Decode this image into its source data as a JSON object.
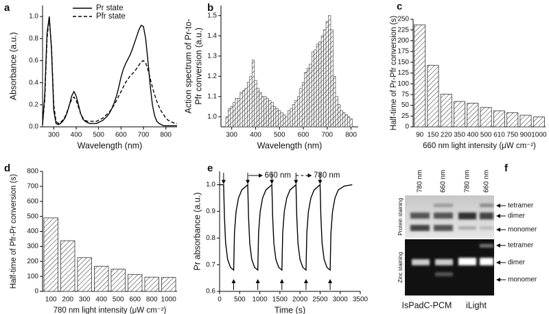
{
  "chart_data": [
    {
      "panel": "a",
      "type": "line",
      "xlabel": "Wavelength (nm)",
      "ylabel": "Absorbance (a.u.)",
      "xlim": [
        250,
        850
      ],
      "xticks": [
        300,
        400,
        500,
        600,
        700,
        800
      ],
      "ylim": [
        0,
        1.1
      ],
      "yticks": [
        {
          "value": 0,
          "label": "0.0"
        },
        0.2,
        0.4,
        0.6,
        0.8,
        {
          "value": 1,
          "label": "1.0"
        }
      ],
      "legend": "upper center",
      "x": [
        250,
        260,
        270,
        280,
        290,
        300,
        310,
        320,
        330,
        340,
        350,
        360,
        370,
        380,
        390,
        400,
        410,
        420,
        430,
        440,
        450,
        460,
        470,
        480,
        490,
        500,
        510,
        520,
        530,
        540,
        550,
        560,
        570,
        580,
        590,
        600,
        610,
        620,
        630,
        640,
        650,
        660,
        670,
        680,
        690,
        700,
        710,
        720,
        730,
        740,
        750,
        760,
        770,
        780,
        790,
        800,
        810,
        820,
        830,
        840,
        850
      ],
      "series": [
        {
          "name": "Pr state",
          "color": "#000000",
          "linestyle": "solid",
          "values": [
            0.02,
            0.3,
            0.85,
            1.0,
            0.7,
            0.15,
            0.03,
            0.02,
            0.03,
            0.05,
            0.08,
            0.13,
            0.2,
            0.28,
            0.32,
            0.28,
            0.2,
            0.12,
            0.07,
            0.05,
            0.04,
            0.03,
            0.03,
            0.03,
            0.03,
            0.04,
            0.05,
            0.06,
            0.08,
            0.1,
            0.13,
            0.17,
            0.22,
            0.28,
            0.36,
            0.45,
            0.52,
            0.57,
            0.61,
            0.65,
            0.7,
            0.76,
            0.82,
            0.88,
            0.92,
            0.91,
            0.8,
            0.6,
            0.38,
            0.2,
            0.1,
            0.05,
            0.03,
            0.02,
            0.01,
            0.01,
            0.01,
            0.01,
            0.01,
            0.01,
            0.01
          ]
        },
        {
          "name": "Pfr state",
          "color": "#000000",
          "linestyle": "dashed",
          "values": [
            0.02,
            0.25,
            0.8,
            1.0,
            0.72,
            0.2,
            0.05,
            0.03,
            0.04,
            0.06,
            0.09,
            0.14,
            0.2,
            0.25,
            0.27,
            0.24,
            0.18,
            0.12,
            0.08,
            0.06,
            0.05,
            0.05,
            0.05,
            0.05,
            0.05,
            0.06,
            0.07,
            0.08,
            0.1,
            0.12,
            0.14,
            0.17,
            0.2,
            0.24,
            0.28,
            0.32,
            0.36,
            0.4,
            0.43,
            0.46,
            0.48,
            0.5,
            0.53,
            0.56,
            0.59,
            0.6,
            0.58,
            0.52,
            0.44,
            0.36,
            0.29,
            0.23,
            0.18,
            0.14,
            0.11,
            0.08,
            0.06,
            0.05,
            0.04,
            0.03,
            0.03
          ]
        }
      ]
    },
    {
      "panel": "b",
      "type": "histogram",
      "xlabel": "Wavelength (nm)",
      "ylabel": [
        "Action spectrum of Pr-to-",
        "Pfr conversion (a.u.)"
      ],
      "xlim": [
        255,
        830
      ],
      "xticks": [
        300,
        400,
        500,
        600,
        700,
        800
      ],
      "ylim": [
        0.95,
        1.55
      ],
      "yticks": [
        {
          "value": 1,
          "label": "1.0"
        },
        1.1,
        1.2,
        1.3,
        1.4,
        1.5
      ],
      "color": "#ffffff",
      "edgecolor": "#333333",
      "hatch": true,
      "bins": [
        275,
        285,
        295,
        305,
        315,
        325,
        335,
        345,
        355,
        365,
        375,
        385,
        395,
        405,
        415,
        425,
        435,
        445,
        455,
        465,
        475,
        485,
        495,
        505,
        515,
        525,
        535,
        545,
        555,
        565,
        575,
        585,
        595,
        605,
        615,
        625,
        635,
        645,
        655,
        665,
        675,
        685,
        695,
        705,
        715,
        725,
        735,
        745,
        755,
        765,
        775,
        785,
        795,
        805
      ],
      "values": [
        1.0,
        1.04,
        1.05,
        1.07,
        1.09,
        1.09,
        1.12,
        1.13,
        1.14,
        1.17,
        1.2,
        1.28,
        1.18,
        1.14,
        1.12,
        1.1,
        1.1,
        1.09,
        1.08,
        1.07,
        1.05,
        1.04,
        1.03,
        1.02,
        1.01,
        1.0,
        1.03,
        1.04,
        1.06,
        1.08,
        1.1,
        1.14,
        1.17,
        1.22,
        1.24,
        1.26,
        1.32,
        1.33,
        1.36,
        1.37,
        1.4,
        1.43,
        1.47,
        1.5,
        1.43,
        1.2,
        1.1,
        1.06,
        1.03,
        1.02,
        1.01,
        1.0,
        0.99
      ]
    },
    {
      "panel": "c",
      "type": "bar",
      "xlabel": "660 nm light intensity (μW cm⁻²)",
      "ylabel": "Half-time of Pr-Pfr conversion (s)",
      "categories": [
        "90",
        "150",
        "220",
        "350",
        "400",
        "500",
        "610",
        "750",
        "900",
        "1000"
      ],
      "values": [
        237,
        143,
        76,
        59,
        55,
        45,
        37,
        33,
        27,
        23
      ],
      "ylim": [
        0,
        250
      ],
      "yticks": [
        0,
        25,
        50,
        75,
        100,
        125,
        150,
        175,
        200,
        225,
        250
      ],
      "color": "#ffffff",
      "edgecolor": "#333333",
      "hatch": true
    },
    {
      "panel": "d",
      "type": "bar",
      "xlabel": "780 nm light intensity (μW cm⁻²)",
      "ylabel": "Half-time of Pfr-Pr conversion (s)",
      "categories": [
        "100",
        "200",
        "300",
        "400",
        "500",
        "600",
        "800",
        "1000"
      ],
      "values": [
        490,
        338,
        225,
        168,
        148,
        113,
        95,
        93
      ],
      "ylim": [
        0,
        800
      ],
      "yticks": [
        0,
        100,
        200,
        300,
        400,
        500,
        600,
        700,
        800
      ],
      "color": "#ffffff",
      "edgecolor": "#333333",
      "hatch": true
    },
    {
      "panel": "e",
      "type": "line",
      "xlabel": "Time (s)",
      "ylabel": "Pr absorbance (a.u.)",
      "xlim": [
        0,
        3500
      ],
      "xticks": [
        0,
        500,
        1000,
        1500,
        2000,
        2500,
        3000,
        3500
      ],
      "ylim": [
        0.6,
        1.05
      ],
      "yticks": [
        0.6,
        0.7,
        0.8,
        0.9,
        {
          "value": 1,
          "label": "1.0"
        }
      ],
      "annotations": [
        "660 nm",
        "780 nm"
      ],
      "down_arrows": [
        100,
        700,
        1300,
        1900,
        2500
      ],
      "up_arrows": [
        350,
        950,
        1550,
        2150,
        2750
      ],
      "x": [
        0,
        100,
        120,
        150,
        200,
        270,
        350,
        370,
        410,
        470,
        550,
        700,
        720,
        750,
        800,
        870,
        950,
        970,
        1010,
        1070,
        1150,
        1300,
        1320,
        1350,
        1400,
        1470,
        1550,
        1570,
        1610,
        1670,
        1750,
        1900,
        1920,
        1950,
        2000,
        2070,
        2150,
        2170,
        2210,
        2270,
        2350,
        2500,
        2520,
        2550,
        2600,
        2670,
        2750,
        2770,
        2810,
        2870,
        2950,
        3100,
        3300
      ],
      "series": [
        {
          "color": "#000000",
          "linestyle": "solid",
          "values": [
            1.0,
            1.0,
            0.88,
            0.78,
            0.72,
            0.69,
            0.68,
            0.82,
            0.9,
            0.95,
            0.98,
            1.0,
            0.88,
            0.78,
            0.72,
            0.69,
            0.68,
            0.82,
            0.9,
            0.95,
            0.98,
            1.0,
            0.88,
            0.78,
            0.72,
            0.69,
            0.68,
            0.82,
            0.9,
            0.95,
            0.98,
            1.0,
            0.88,
            0.78,
            0.72,
            0.69,
            0.68,
            0.82,
            0.9,
            0.95,
            0.98,
            1.0,
            0.88,
            0.78,
            0.72,
            0.69,
            0.68,
            0.82,
            0.9,
            0.95,
            0.98,
            0.995,
            1.0
          ]
        }
      ]
    }
  ],
  "gel": {
    "panel": "f",
    "lanes": [
      "780 nm",
      "660 nm",
      "780 nm",
      "660 nm"
    ],
    "top_bands": [
      "tetramer",
      "dimer",
      "monomer"
    ],
    "bottom_bands": [
      "tetramer",
      "dimer",
      "monomer"
    ],
    "top_side": "Protein staining",
    "bottom_side": "Zinc staining",
    "constructs": [
      "IsPadC-PCM",
      "iLight"
    ]
  }
}
